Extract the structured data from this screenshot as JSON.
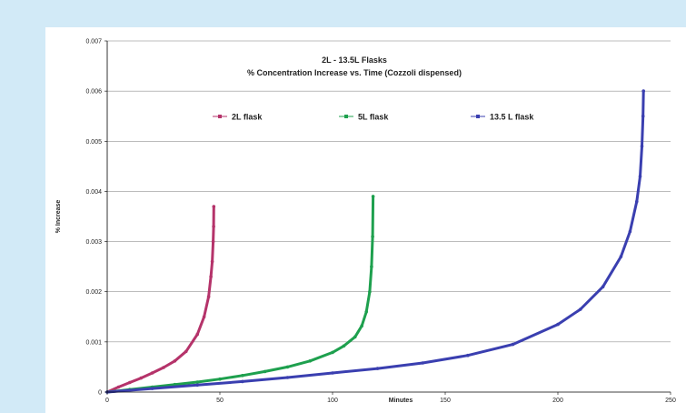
{
  "chart_data": {
    "type": "scatter",
    "title": "2L - 13.5L Flasks",
    "subtitle": "% Concentration Increase vs. Time (Cozzoli dispensed)",
    "xlabel": "Minutes",
    "ylabel": "% Increase",
    "xlim": [
      0,
      250
    ],
    "ylim": [
      0,
      0.007
    ],
    "x_ticks": [
      "0",
      "50",
      "100",
      "150",
      "200",
      "250"
    ],
    "y_ticks": [
      "0",
      "0.001",
      "0.002",
      "0.003",
      "0.004",
      "0.005",
      "0.006",
      "0.007"
    ],
    "grid": "horizontal",
    "legend_position": "top",
    "series": [
      {
        "name": "2L flask",
        "color": "#b5336a",
        "x": [
          0,
          5,
          10,
          15,
          20,
          25,
          30,
          35,
          40,
          43,
          45,
          46,
          46.6,
          47,
          47.2,
          47.3
        ],
        "y": [
          0,
          0.0001,
          0.00019,
          0.00028,
          0.00038,
          0.00049,
          0.00062,
          0.00081,
          0.00115,
          0.0015,
          0.0019,
          0.0023,
          0.0026,
          0.003,
          0.0033,
          0.0037
        ]
      },
      {
        "name": "5L flask",
        "color": "#1ea04e",
        "x": [
          0,
          10,
          20,
          30,
          40,
          50,
          60,
          70,
          80,
          90,
          100,
          105,
          110,
          113,
          115,
          116.5,
          117.3,
          117.8,
          118
        ],
        "y": [
          0,
          5e-05,
          0.0001,
          0.00015,
          0.0002,
          0.00026,
          0.00033,
          0.00041,
          0.0005,
          0.00062,
          0.00079,
          0.00092,
          0.0011,
          0.00132,
          0.0016,
          0.002,
          0.0025,
          0.0031,
          0.0039
        ]
      },
      {
        "name": "13.5 L flask",
        "color": "#3a3fb0",
        "x": [
          0,
          20,
          40,
          60,
          80,
          100,
          120,
          140,
          160,
          180,
          200,
          210,
          220,
          228,
          232,
          235,
          236.5,
          237.3,
          237.8,
          238
        ],
        "y": [
          0,
          7e-05,
          0.00014,
          0.00021,
          0.00029,
          0.00038,
          0.00047,
          0.00058,
          0.00073,
          0.00095,
          0.00135,
          0.00165,
          0.0021,
          0.0027,
          0.0032,
          0.0038,
          0.0043,
          0.0049,
          0.0055,
          0.006
        ]
      }
    ]
  }
}
